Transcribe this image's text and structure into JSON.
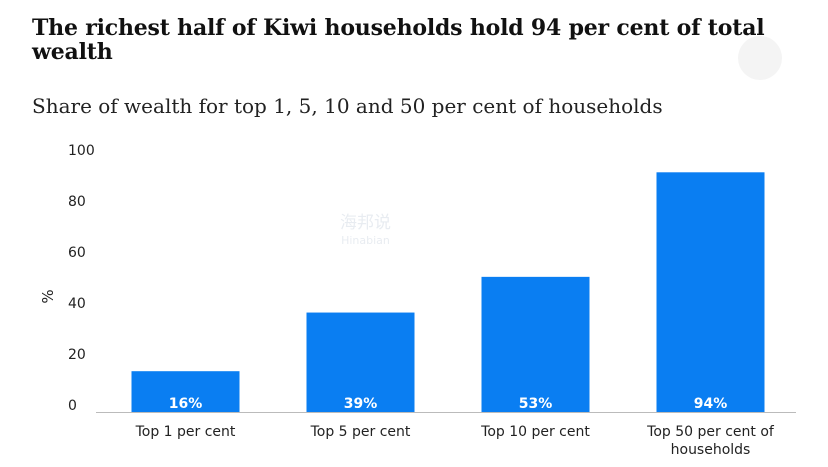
{
  "header": {
    "title": "The richest half of Kiwi households hold 94 per cent of total wealth",
    "subtitle": "Share of wealth for top 1, 5, 10 and 50 per cent of households"
  },
  "watermark": {
    "main": "海邦说",
    "sub": "Hinabian"
  },
  "colors": {
    "bar": "#0a7ef2",
    "axis": "#bbbbbb"
  },
  "chart_data": {
    "type": "bar",
    "title": "The richest half of Kiwi households hold 94 per cent of total wealth",
    "subtitle": "Share of wealth for top 1, 5, 10 and 50 per cent of households",
    "xlabel": "",
    "ylabel": "%",
    "ylim": [
      0,
      100
    ],
    "yticks": [
      0,
      20,
      40,
      60,
      80,
      100
    ],
    "grid": false,
    "categories": [
      "Top 1 per cent",
      "Top 5 per cent",
      "Top 10 per cent",
      "Top 50 per cent of households"
    ],
    "category_lines": [
      [
        "Top 1 per cent"
      ],
      [
        "Top 5 per cent"
      ],
      [
        "Top 10 per cent"
      ],
      [
        "Top 50 per cent of",
        "households"
      ]
    ],
    "values": [
      16,
      39,
      53,
      94
    ],
    "bar_heights_on_axis": [
      16,
      39,
      53,
      94
    ],
    "data_labels": [
      "16%",
      "39%",
      "53%",
      "94%"
    ]
  }
}
